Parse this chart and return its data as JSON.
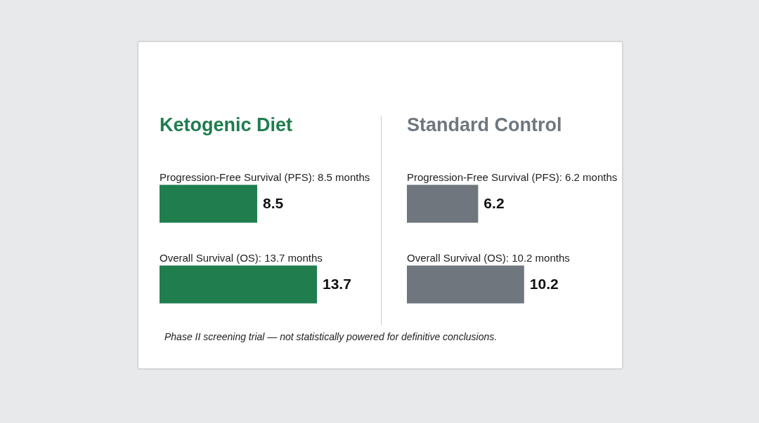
{
  "chart_data": [
    {
      "type": "bar",
      "orientation": "horizontal",
      "title": "Ketogenic Diet",
      "categories": [
        "Progression-Free Survival (PFS): 8.5 months",
        "Overall Survival (OS): 13.7 months"
      ],
      "data_labels": true,
      "series": [
        {
          "color": "#1f7d4e",
          "values": [
            8.5,
            13.7
          ]
        }
      ],
      "annotations": [
        "Phase II screening trial — not statistically powered for definitive conclusions."
      ]
    },
    {
      "type": "bar",
      "orientation": "horizontal",
      "title": "Standard Control",
      "categories": [
        "Progression-Free Survival (PFS): 6.2 months",
        "Overall Survival (OS): 10.2 months"
      ],
      "data_labels": true,
      "series": [
        {
          "color": "#6f767d",
          "values": [
            6.2,
            10.2
          ]
        }
      ]
    }
  ]
}
